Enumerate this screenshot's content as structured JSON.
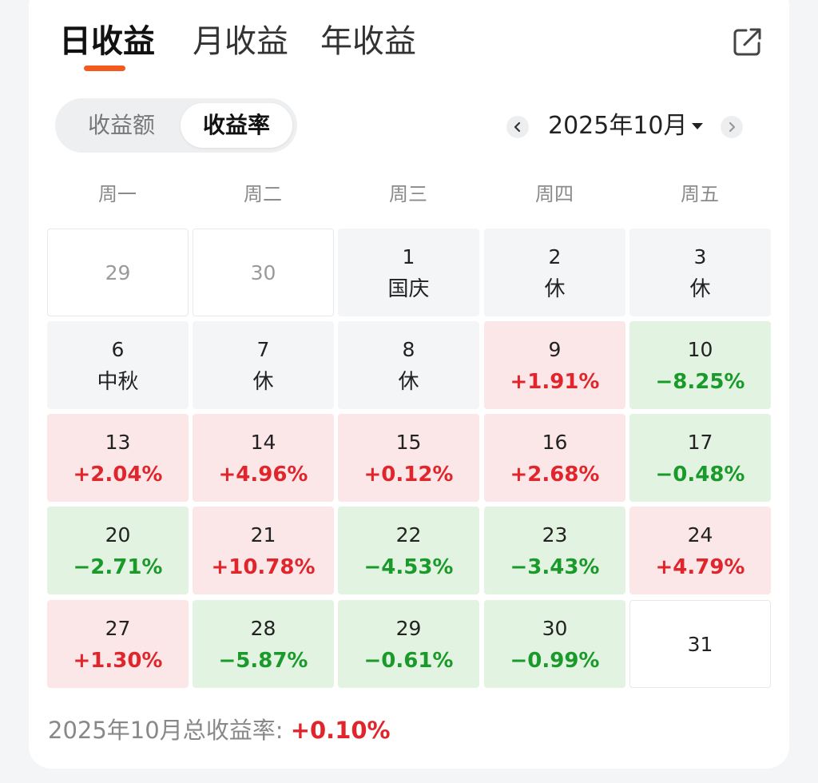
{
  "tabs": [
    {
      "label": "日收益",
      "active": true
    },
    {
      "label": "月收益",
      "active": false
    },
    {
      "label": "年收益",
      "active": false
    }
  ],
  "segment": {
    "options": [
      "收益额",
      "收益率"
    ],
    "selected": "收益率"
  },
  "month_nav": {
    "label": "2025年10月"
  },
  "weekdays": [
    "周一",
    "周二",
    "周三",
    "周四",
    "周五"
  ],
  "colors": {
    "accent": "#f25a1f",
    "gain": "#e0262c",
    "loss": "#1a9a2a",
    "gain_bg": "#fce7e8",
    "loss_bg": "#e3f3e1",
    "holiday_bg": "#f3f5f7"
  },
  "icons": {
    "share": "share-icon",
    "prev": "chevron-left-icon",
    "next": "chevron-right-icon",
    "dropdown": "caret-down-icon"
  },
  "calendar": [
    [
      {
        "day": "29",
        "kind": "other-month",
        "sub": ""
      },
      {
        "day": "30",
        "kind": "other-month",
        "sub": ""
      },
      {
        "day": "1",
        "kind": "holiday",
        "sub": "国庆"
      },
      {
        "day": "2",
        "kind": "holiday",
        "sub": "休"
      },
      {
        "day": "3",
        "kind": "holiday",
        "sub": "休"
      }
    ],
    [
      {
        "day": "6",
        "kind": "holiday",
        "sub": "中秋"
      },
      {
        "day": "7",
        "kind": "holiday",
        "sub": "休"
      },
      {
        "day": "8",
        "kind": "holiday",
        "sub": "休"
      },
      {
        "day": "9",
        "kind": "up",
        "sub": "+1.91%"
      },
      {
        "day": "10",
        "kind": "down",
        "sub": "−8.25%"
      }
    ],
    [
      {
        "day": "13",
        "kind": "up",
        "sub": "+2.04%"
      },
      {
        "day": "14",
        "kind": "up",
        "sub": "+4.96%"
      },
      {
        "day": "15",
        "kind": "up",
        "sub": "+0.12%"
      },
      {
        "day": "16",
        "kind": "up",
        "sub": "+2.68%"
      },
      {
        "day": "17",
        "kind": "down",
        "sub": "−0.48%"
      }
    ],
    [
      {
        "day": "20",
        "kind": "down",
        "sub": "−2.71%"
      },
      {
        "day": "21",
        "kind": "up",
        "sub": "+10.78%"
      },
      {
        "day": "22",
        "kind": "down",
        "sub": "−4.53%"
      },
      {
        "day": "23",
        "kind": "down",
        "sub": "−3.43%"
      },
      {
        "day": "24",
        "kind": "up",
        "sub": "+4.79%"
      }
    ],
    [
      {
        "day": "27",
        "kind": "up",
        "sub": "+1.30%"
      },
      {
        "day": "28",
        "kind": "down",
        "sub": "−5.87%"
      },
      {
        "day": "29",
        "kind": "down",
        "sub": "−0.61%"
      },
      {
        "day": "30",
        "kind": "down",
        "sub": "−0.99%"
      },
      {
        "day": "31",
        "kind": "empty",
        "sub": ""
      }
    ]
  ],
  "summary": {
    "label": "2025年10月总收益率: ",
    "value": "+0.10%"
  }
}
